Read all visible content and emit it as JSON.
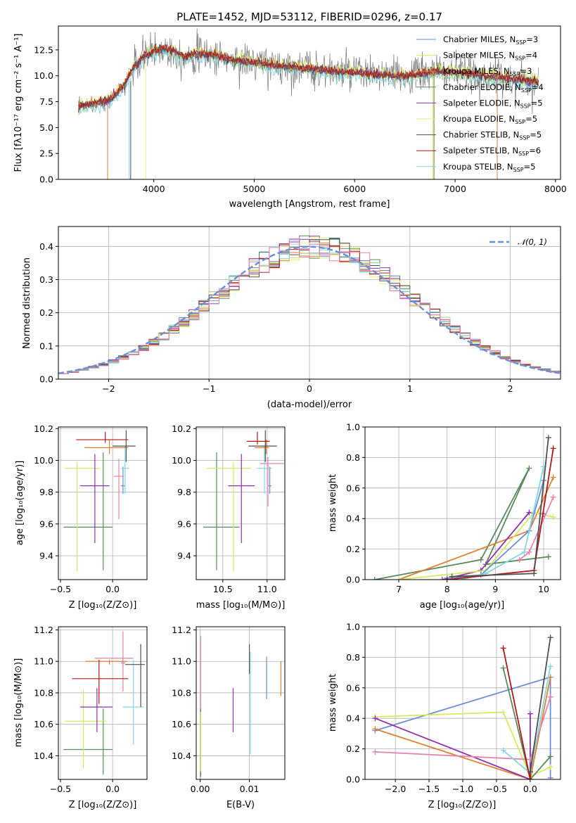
{
  "colors": {
    "chabrier_miles": "#6a8fd8",
    "salpeter_miles": "#d8e860",
    "kroupa_miles": "#e08030",
    "chabrier_elodie": "#5a8a5a",
    "salpeter_elodie": "#9030b0",
    "kroupa_elodie": "#e8f080",
    "chabrier_stelib": "#505050",
    "salpeter_stelib": "#b01818",
    "kroupa_stelib": "#80d8e0",
    "pink": "#e880b0",
    "gauss": "#6a8fd8"
  },
  "chart_data": [
    {
      "id": "spectrum",
      "type": "line",
      "title": "PLATE=1452, MJD=53112, FIBERID=0296, z=0.17",
      "xlabel": "wavelength [Angstrom, rest frame]",
      "ylabel": "Flux [fλ10⁻¹⁷ erg cm⁻² s⁻¹ A⁻¹]",
      "xlim": [
        3050,
        8050
      ],
      "ylim": [
        0,
        14.8
      ],
      "xticks": [
        "4000",
        "5000",
        "6000",
        "7000",
        "8000"
      ],
      "yticks": [
        "0.0",
        "2.5",
        "5.0",
        "7.5",
        "10.0",
        "12.5"
      ],
      "legend_position": "right",
      "legend": [
        {
          "label": "Chabrier MILES, N",
          "sub": "SSP",
          "val": "=3",
          "color": "#6a8fd8"
        },
        {
          "label": "Salpeter MILES, N",
          "sub": "SSP",
          "val": "=4",
          "color": "#d8e860"
        },
        {
          "label": "Kroupa MILES, N",
          "sub": "SSP",
          "val": "=3",
          "color": "#e08030"
        },
        {
          "label": "Chabrier ELODIE, N",
          "sub": "SSP",
          "val": "=4",
          "color": "#5a8a5a"
        },
        {
          "label": "Salpeter ELODIE, N",
          "sub": "SSP",
          "val": "=5",
          "color": "#9030b0"
        },
        {
          "label": "Kroupa ELODIE, N",
          "sub": "SSP",
          "val": "=5",
          "color": "#e8f080"
        },
        {
          "label": "Chabrier STELIB, N",
          "sub": "SSP",
          "val": "=5",
          "color": "#505050"
        },
        {
          "label": "Salpeter STELIB, N",
          "sub": "SSP",
          "val": "=6",
          "color": "#b01818"
        },
        {
          "label": "Kroupa STELIB, N",
          "sub": "SSP",
          "val": "=5",
          "color": "#80d8e0"
        }
      ],
      "continuum": [
        [
          3250,
          7.0
        ],
        [
          3400,
          7.3
        ],
        [
          3550,
          7.6
        ],
        [
          3700,
          9.0
        ],
        [
          3800,
          10.8
        ],
        [
          3900,
          11.8
        ],
        [
          4000,
          12.4
        ],
        [
          4100,
          12.6
        ],
        [
          4200,
          12.4
        ],
        [
          4300,
          11.8
        ],
        [
          4400,
          12.1
        ],
        [
          4600,
          12.0
        ],
        [
          4800,
          11.5
        ],
        [
          5000,
          11.3
        ],
        [
          5200,
          11.0
        ],
        [
          5500,
          10.7
        ],
        [
          5800,
          10.4
        ],
        [
          6000,
          10.3
        ],
        [
          6200,
          10.1
        ],
        [
          6500,
          9.9
        ],
        [
          6800,
          10.4
        ],
        [
          7000,
          10.3
        ],
        [
          7300,
          10.0
        ],
        [
          7600,
          9.6
        ],
        [
          7800,
          9.4
        ]
      ]
    },
    {
      "id": "residuals",
      "type": "step",
      "xlabel": "(data-model)/error",
      "ylabel": "Normed distribution",
      "xlim": [
        -2.5,
        2.5
      ],
      "ylim": [
        0,
        0.46
      ],
      "xticks": [
        "−2",
        "−1",
        "0",
        "1",
        "2"
      ],
      "yticks": [
        "0.0",
        "0.1",
        "0.2",
        "0.3",
        "0.4"
      ],
      "legend_position": "top-right",
      "gauss_label": "𝒩(0, 1)",
      "gauss": {
        "mu": 0,
        "sigma": 1
      }
    },
    {
      "id": "age-vs-Z",
      "type": "errorbar",
      "xlabel": "Z [log₁₀(Z/Z⊙)]",
      "ylabel": "age  [log₁₀(age/yr)]",
      "xlim": [
        -0.52,
        0.33
      ],
      "ylim": [
        9.25,
        10.21
      ],
      "xticks": [
        "−0.5",
        "0.0"
      ],
      "yticks": [
        "9.4",
        "9.6",
        "9.8",
        "10.0",
        "10.2"
      ],
      "points": [
        {
          "x": -0.09,
          "y": 9.58,
          "xerr": [
            0.38,
            0.09
          ],
          "yerr": [
            0.27,
            0.47
          ],
          "color": "#5a8a5a"
        },
        {
          "x": -0.34,
          "y": 9.95,
          "xerr": [
            0.12,
            0.22
          ],
          "yerr": [
            0.65,
            0.04
          ],
          "color": "#d8e860"
        },
        {
          "x": -0.17,
          "y": 9.84,
          "xerr": [
            0.14,
            0.14
          ],
          "yerr": [
            0.36,
            0.2
          ],
          "color": "#9030b0"
        },
        {
          "x": 0.1,
          "y": 9.84,
          "xerr": [
            0.02,
            0.02
          ],
          "yerr": [
            0.05,
            0.12
          ],
          "color": "#6a8fd8"
        },
        {
          "x": 0.12,
          "y": 9.95,
          "xerr": [
            0.04,
            0.04
          ],
          "yerr": [
            0.16,
            0.14
          ],
          "color": "#80d8e0"
        },
        {
          "x": 0.06,
          "y": 9.9,
          "xerr": [
            0.05,
            0.05
          ],
          "yerr": [
            0.27,
            0.11
          ],
          "color": "#e880b0"
        },
        {
          "x": -0.03,
          "y": 10.08,
          "xerr": [
            0.24,
            0.18
          ],
          "yerr": [
            0.04,
            0.05
          ],
          "color": "#e08030"
        },
        {
          "x": -0.07,
          "y": 10.13,
          "xerr": [
            0.28,
            0.22
          ],
          "yerr": [
            0.02,
            0.05
          ],
          "color": "#b01818"
        },
        {
          "x": 0.13,
          "y": 10.09,
          "xerr": [
            0.13,
            0.09
          ],
          "yerr": [
            0.1,
            0.1
          ],
          "color": "#505050"
        }
      ]
    },
    {
      "id": "age-vs-mass",
      "type": "errorbar",
      "xlabel": "mass [log₁₀(M/M⊙)]",
      "ylabel": "",
      "xlim": [
        10.2,
        11.2
      ],
      "ylim": [
        9.25,
        10.21
      ],
      "xticks": [
        "10.5",
        "11.0"
      ],
      "yticks": [
        "9.4",
        "9.6",
        "9.8",
        "10.0",
        "10.2"
      ],
      "points": [
        {
          "x": 10.43,
          "y": 9.58,
          "xerr": [
            0.15,
            0.26
          ],
          "yerr": [
            0.27,
            0.47
          ],
          "color": "#5a8a5a"
        },
        {
          "x": 10.62,
          "y": 9.95,
          "xerr": [
            0.3,
            0.2
          ],
          "yerr": [
            0.65,
            0.04
          ],
          "color": "#d8e860"
        },
        {
          "x": 10.71,
          "y": 9.84,
          "xerr": [
            0.15,
            0.15
          ],
          "yerr": [
            0.36,
            0.2
          ],
          "color": "#9030b0"
        },
        {
          "x": 11.03,
          "y": 9.84,
          "xerr": [
            0.02,
            0.02
          ],
          "yerr": [
            0.05,
            0.12
          ],
          "color": "#6a8fd8"
        },
        {
          "x": 10.97,
          "y": 9.95,
          "xerr": [
            0.08,
            0.08
          ],
          "yerr": [
            0.16,
            0.14
          ],
          "color": "#80d8e0"
        },
        {
          "x": 11.01,
          "y": 9.98,
          "xerr": [
            0.09,
            0.18
          ],
          "yerr": [
            0.27,
            0.04
          ],
          "color": "#e880b0"
        },
        {
          "x": 10.99,
          "y": 10.08,
          "xerr": [
            0.13,
            0.03
          ],
          "yerr": [
            0.04,
            0.05
          ],
          "color": "#e08030"
        },
        {
          "x": 10.89,
          "y": 10.12,
          "xerr": [
            0.12,
            0.14
          ],
          "yerr": [
            0.02,
            0.06
          ],
          "color": "#b01818"
        },
        {
          "x": 10.98,
          "y": 10.09,
          "xerr": [
            0.19,
            0.13
          ],
          "yerr": [
            0.1,
            0.1
          ],
          "color": "#505050"
        }
      ]
    },
    {
      "id": "massweight-vs-age",
      "type": "line",
      "xlabel": "age  [log₁₀(age/yr)]",
      "ylabel": "mass weight",
      "xlim": [
        6.3,
        10.35
      ],
      "ylim": [
        0,
        1.0
      ],
      "xticks": [
        "7",
        "8",
        "9",
        "10"
      ],
      "yticks": [
        "0.0",
        "0.2",
        "0.4",
        "0.6",
        "0.8",
        "1.0"
      ],
      "series": [
        {
          "color": "#5a8a5a",
          "points": [
            [
              6.5,
              0.0
            ],
            [
              8.7,
              0.13
            ],
            [
              9.7,
              0.73
            ],
            [
              8.8,
              0.1
            ],
            [
              10.1,
              0.15
            ]
          ]
        },
        {
          "color": "#e08030",
          "points": [
            [
              7.0,
              0.0
            ],
            [
              9.7,
              0.32
            ],
            [
              10.2,
              0.67
            ]
          ]
        },
        {
          "color": "#9030b0",
          "points": [
            [
              7.9,
              0.0
            ],
            [
              8.7,
              0.06
            ],
            [
              9.7,
              0.44
            ],
            [
              10.0,
              0.43
            ]
          ]
        },
        {
          "color": "#d8e860",
          "points": [
            [
              7.0,
              0.0
            ],
            [
              8.8,
              0.06
            ],
            [
              9.8,
              0.44
            ],
            [
              10.2,
              0.41
            ]
          ]
        },
        {
          "color": "#6a8fd8",
          "points": [
            [
              8.0,
              0.01
            ],
            [
              8.7,
              0.03
            ],
            [
              9.7,
              0.32
            ],
            [
              10.0,
              0.65
            ]
          ]
        },
        {
          "color": "#80d8e0",
          "points": [
            [
              8.3,
              0.0
            ],
            [
              8.8,
              0.04
            ],
            [
              9.6,
              0.18
            ],
            [
              10.0,
              0.74
            ]
          ]
        },
        {
          "color": "#e880b0",
          "points": [
            [
              9.5,
              0.13
            ],
            [
              9.7,
              0.18
            ],
            [
              10.2,
              0.54
            ]
          ]
        },
        {
          "color": "#b01818",
          "points": [
            [
              8.0,
              0.0
            ],
            [
              9.8,
              0.06
            ],
            [
              10.2,
              0.86
            ]
          ]
        },
        {
          "color": "#505050",
          "points": [
            [
              8.1,
              0.02
            ],
            [
              9.8,
              0.04
            ],
            [
              10.1,
              0.93
            ]
          ]
        }
      ]
    },
    {
      "id": "mass-vs-Z",
      "type": "errorbar",
      "xlabel": "Z [log₁₀(Z/Z⊙)]",
      "ylabel": "mass [log₁₀(M/M⊙)]",
      "xlim": [
        -0.52,
        0.33
      ],
      "ylim": [
        10.25,
        11.22
      ],
      "xticks": [
        "−0.5",
        "0.0"
      ],
      "yticks": [
        "10.4",
        "10.6",
        "10.8",
        "11.0",
        "11.2"
      ],
      "points": [
        {
          "x": -0.09,
          "y": 10.44,
          "xerr": [
            0.38,
            0.09
          ],
          "yerr": [
            0.16,
            0.26
          ],
          "color": "#5a8a5a"
        },
        {
          "x": -0.28,
          "y": 10.62,
          "xerr": [
            0.18,
            0.22
          ],
          "yerr": [
            0.3,
            0.2
          ],
          "color": "#d8e860"
        },
        {
          "x": -0.15,
          "y": 10.71,
          "xerr": [
            0.16,
            0.15
          ],
          "yerr": [
            0.16,
            0.12
          ],
          "color": "#9030b0"
        },
        {
          "x": 0.1,
          "y": 10.99,
          "xerr": [
            0.02,
            0.02
          ],
          "yerr": [
            0.02,
            0.04
          ],
          "color": "#6a8fd8"
        },
        {
          "x": 0.2,
          "y": 10.71,
          "xerr": [
            0.1,
            0.1
          ],
          "yerr": [
            0.24,
            0.3
          ],
          "color": "#80d8e0"
        },
        {
          "x": 0.1,
          "y": 11.02,
          "xerr": [
            0.27,
            0.1
          ],
          "yerr": [
            0.21,
            0.17
          ],
          "color": "#e880b0"
        },
        {
          "x": -0.03,
          "y": 11.0,
          "xerr": [
            0.23,
            0.17
          ],
          "yerr": [
            0.02,
            0.01
          ],
          "color": "#e08030"
        },
        {
          "x": -0.13,
          "y": 10.89,
          "xerr": [
            0.26,
            0.28
          ],
          "yerr": [
            0.16,
            0.12
          ],
          "color": "#b01818"
        },
        {
          "x": 0.27,
          "y": 10.98,
          "xerr": [
            0.15,
            0.04
          ],
          "yerr": [
            0.27,
            0.13
          ],
          "color": "#505050"
        }
      ]
    },
    {
      "id": "mass-vs-EBV",
      "type": "errorbar",
      "xlabel": "E(B-V)",
      "ylabel": "",
      "xlim": [
        -0.0008,
        0.0172
      ],
      "ylim": [
        10.25,
        11.22
      ],
      "xticks": [
        "0.00",
        "0.01"
      ],
      "yticks": [
        "10.4",
        "10.6",
        "10.8",
        "11.0",
        "11.2"
      ],
      "points": [
        {
          "x": 0.0001,
          "y": 10.46,
          "yerr": [
            0.2,
            0.7
          ],
          "color": "#e880b0"
        },
        {
          "x": 0.0001,
          "y": 10.45,
          "yerr": [
            0.18,
            0.25
          ],
          "color": "#5a8a5a"
        },
        {
          "x": 0.0001,
          "y": 10.4,
          "yerr": [
            0.1,
            0.28
          ],
          "color": "#d8e860"
        },
        {
          "x": 0.0067,
          "y": 10.69,
          "yerr": [
            0.14,
            0.14
          ],
          "color": "#9030b0"
        },
        {
          "x": 0.01,
          "y": 11.01,
          "yerr": [
            0.09,
            0.1
          ],
          "color": "#505050"
        },
        {
          "x": 0.0102,
          "y": 10.71,
          "yerr": [
            0.3,
            0.35
          ],
          "color": "#80d8e0"
        },
        {
          "x": 0.0135,
          "y": 10.86,
          "yerr": [
            0.1,
            0.17
          ],
          "color": "#6a8fd8"
        },
        {
          "x": 0.0164,
          "y": 10.89,
          "yerr": [
            0.11,
            0.11
          ],
          "color": "#e08030"
        }
      ]
    },
    {
      "id": "massweight-vs-Z",
      "type": "line",
      "xlabel": "Z [log₁₀(Z/Z⊙)]",
      "ylabel": "mass weight",
      "xlim": [
        -2.45,
        0.45
      ],
      "ylim": [
        0,
        1.0
      ],
      "xticks": [
        "−2.0",
        "−1.5",
        "−1.0",
        "−0.5",
        "0.0"
      ],
      "yticks": [
        "0.0",
        "0.2",
        "0.4",
        "0.6",
        "0.8",
        "1.0"
      ],
      "series": [
        {
          "color": "#6a8fd8",
          "points": [
            [
              -2.3,
              0.32
            ],
            [
              0.3,
              0.67
            ],
            [
              0.3,
              0.01
            ]
          ]
        },
        {
          "color": "#d8e860",
          "points": [
            [
              -2.3,
              0.41
            ],
            [
              -0.4,
              0.44
            ],
            [
              0.0,
              0.02
            ],
            [
              0.3,
              0.08
            ]
          ]
        },
        {
          "color": "#e08030",
          "points": [
            [
              -2.3,
              0.33
            ],
            [
              0.0,
              0.0
            ],
            [
              0.3,
              0.67
            ]
          ]
        },
        {
          "color": "#9030b0",
          "points": [
            [
              -2.3,
              0.4
            ],
            [
              0.0,
              0.0
            ],
            [
              0.0,
              0.43
            ]
          ]
        },
        {
          "color": "#e880b0",
          "points": [
            [
              -2.3,
              0.18
            ],
            [
              0.0,
              0.13
            ],
            [
              0.3,
              0.54
            ]
          ]
        },
        {
          "color": "#5a8a5a",
          "points": [
            [
              -0.4,
              0.73
            ],
            [
              0.0,
              0.0
            ],
            [
              0.3,
              0.15
            ]
          ]
        },
        {
          "color": "#80d8e0",
          "points": [
            [
              -0.4,
              0.19
            ],
            [
              0.0,
              0.04
            ],
            [
              0.3,
              0.74
            ]
          ]
        },
        {
          "color": "#b01818",
          "points": [
            [
              -0.4,
              0.86
            ],
            [
              0.0,
              0.0
            ],
            [
              0.0,
              0.05
            ]
          ]
        },
        {
          "color": "#505050",
          "points": [
            [
              0.0,
              0.05
            ],
            [
              0.3,
              0.93
            ]
          ]
        }
      ]
    }
  ]
}
